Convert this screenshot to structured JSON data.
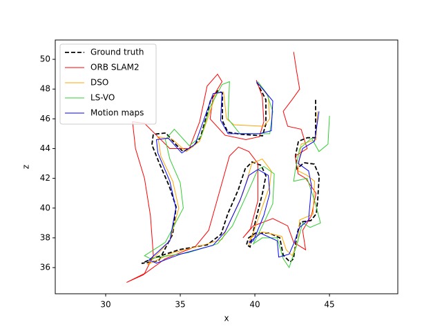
{
  "chart_data": {
    "type": "line",
    "xlabel": "x",
    "ylabel": "z",
    "xlim": [
      26.62,
      49.58
    ],
    "ylim": [
      34.24,
      51.3
    ],
    "xticks": [
      30,
      35,
      40,
      45
    ],
    "yticks": [
      36,
      38,
      40,
      42,
      44,
      46,
      48,
      50
    ],
    "legend": "upper left",
    "series": [
      {
        "name": "Ground truth",
        "color": "#000000",
        "linestyle": "dashed",
        "x": [
          44.07,
          44.07,
          43.52,
          42.92,
          42.73,
          42.82,
          43.29,
          43.98,
          44.31,
          44.21,
          44.12,
          43.75,
          43.06,
          42.82,
          42.59,
          42.36,
          41.9,
          41.67,
          40.97,
          40.05,
          39.58,
          39.44,
          39.68,
          40.05,
          40.51,
          40.74,
          40.42,
          39.81,
          39.35,
          38.89,
          38.19,
          37.73,
          36.81,
          34.95,
          33.1,
          32.41,
          33.56,
          34.49,
          34.72,
          34.26,
          33.56,
          33.1,
          33.19,
          34.03,
          34.72,
          35.19,
          35.88,
          36.34,
          36.67,
          37.04,
          37.5,
          37.82,
          37.82,
          38.19,
          39.12,
          40.51,
          40.74,
          40.74,
          40.14
        ],
        "values": [
          47.28,
          44.73,
          44.73,
          44.49,
          43.56,
          42.64,
          43.05,
          42.96,
          42.17,
          40.55,
          39.62,
          39.16,
          39.06,
          38.23,
          36.6,
          36.37,
          36.84,
          38.0,
          38.32,
          38.32,
          38.0,
          37.53,
          37.39,
          39.16,
          41.01,
          42.17,
          42.87,
          43.1,
          42.64,
          41.24,
          39.62,
          38.23,
          37.53,
          37.21,
          36.6,
          36.28,
          36.46,
          38.23,
          40.08,
          41.48,
          43.1,
          44.26,
          44.96,
          45.05,
          44.26,
          43.8,
          44.17,
          44.73,
          45.88,
          47.28,
          47.88,
          47.74,
          45.88,
          45.1,
          44.96,
          44.86,
          45.65,
          47.28,
          48.44
        ]
      },
      {
        "name": "ORB SLAM2",
        "color": "#ff0000",
        "linestyle": "solid",
        "x": [
          42.6,
          42.8,
          43.0,
          42.5,
          41.9,
          42.2,
          43.1,
          43.5,
          42.7,
          42.9,
          43.4,
          44.1,
          43.8,
          43.2,
          43.4,
          42.6,
          42.2,
          41.2,
          39.9,
          39.2,
          39.7,
          40.2,
          40.2,
          39.6,
          38.9,
          38.3,
          37.6,
          36.9,
          36.0,
          34.0,
          32.5,
          31.4,
          32.6,
          33.2,
          33.0,
          32.6,
          32.0,
          31.8,
          32.6,
          33.5,
          34.3,
          35.6,
          36.3,
          36.8,
          37.5,
          37.8,
          37.2,
          37.0,
          38.0,
          39.4,
          40.3,
          40.6,
          40.5,
          40.1
        ],
        "values": [
          50.5,
          49.2,
          48.0,
          47.3,
          46.5,
          45.5,
          45.3,
          44.0,
          43.5,
          42.3,
          42.0,
          41.0,
          39.5,
          38.5,
          37.2,
          37.7,
          38.8,
          39.3,
          38.8,
          38.0,
          38.6,
          40.5,
          43.0,
          43.8,
          44.1,
          43.5,
          41.0,
          38.5,
          37.4,
          36.6,
          35.5,
          35.0,
          35.6,
          36.8,
          39.5,
          42.0,
          44.0,
          45.8,
          45.7,
          44.8,
          44.0,
          44.0,
          45.8,
          48.2,
          49.0,
          48.5,
          47.5,
          46.0,
          44.9,
          44.6,
          44.8,
          45.8,
          47.5,
          48.6
        ]
      },
      {
        "name": "DSO",
        "color": "#ffa500",
        "linestyle": "solid",
        "x": [
          44.2,
          44.1,
          43.1,
          42.9,
          43.5,
          44.0,
          43.9,
          43.0,
          42.9,
          42.5,
          42.1,
          41.8,
          40.5,
          39.7,
          39.6,
          40.3,
          41.0,
          41.1,
          40.5,
          39.8,
          39.2,
          38.3,
          37.8,
          36.5,
          34.5,
          32.8,
          34.3,
          34.9,
          34.5,
          33.7,
          33.5,
          34.5,
          35.4,
          36.3,
          36.9,
          37.4,
          37.9,
          38.1,
          38.6,
          40.6,
          41.0,
          40.9,
          40.3
        ],
        "values": [
          46.5,
          44.6,
          44.3,
          42.5,
          42.2,
          41.8,
          39.6,
          39.2,
          37.8,
          36.8,
          37.2,
          38.1,
          38.4,
          38.0,
          37.5,
          39.5,
          41.5,
          42.5,
          43.3,
          43.0,
          41.0,
          39.0,
          37.9,
          37.5,
          37.0,
          36.2,
          37.8,
          40.0,
          41.8,
          43.5,
          44.8,
          44.6,
          43.8,
          44.5,
          46.2,
          47.7,
          47.8,
          46.0,
          45.6,
          45.5,
          46.0,
          47.5,
          48.3
        ]
      },
      {
        "name": "LS-VO",
        "color": "#32cd32",
        "linestyle": "solid",
        "x": [
          45.0,
          44.9,
          44.3,
          43.8,
          43.0,
          42.7,
          42.6,
          43.5,
          44.0,
          44.4,
          43.7,
          43.2,
          42.8,
          42.3,
          41.9,
          41.5,
          40.5,
          39.9,
          40.6,
          41.2,
          41.3,
          40.6,
          40.2,
          39.5,
          38.5,
          37.5,
          35.5,
          33.0,
          32.6,
          34.0,
          35.2,
          35.0,
          34.3,
          34.0,
          34.6,
          35.6,
          36.4,
          37.0,
          37.8,
          38.3,
          38.2,
          39.0,
          41.0,
          41.2,
          40.8,
          40.2
        ],
        "values": [
          46.2,
          44.3,
          43.8,
          44.7,
          44.0,
          42.5,
          41.8,
          42.0,
          40.5,
          39.0,
          38.7,
          39.0,
          37.5,
          36.0,
          36.6,
          38.0,
          38.0,
          37.6,
          39.0,
          40.3,
          42.3,
          42.8,
          42.6,
          41.0,
          38.8,
          37.6,
          37.0,
          36.6,
          36.8,
          37.7,
          40.0,
          41.7,
          43.3,
          44.6,
          45.3,
          44.2,
          44.8,
          46.8,
          48.3,
          48.5,
          46.0,
          45.0,
          45.0,
          46.5,
          47.7,
          48.5
        ]
      },
      {
        "name": "Motion maps",
        "color": "#0000ff",
        "linestyle": "solid",
        "x": [
          44.3,
          44.0,
          43.2,
          42.9,
          43.6,
          43.8,
          43.6,
          43.0,
          42.6,
          42.3,
          41.6,
          41.5,
          40.4,
          39.6,
          39.9,
          40.6,
          41.0,
          40.9,
          40.2,
          39.6,
          39.0,
          38.0,
          37.2,
          35.0,
          33.4,
          32.9,
          34.3,
          34.7,
          34.3,
          33.5,
          33.4,
          34.2,
          35.1,
          36.0,
          36.6,
          37.2,
          37.8,
          37.7,
          38.2,
          40.3,
          41.1,
          41.2,
          40.7,
          40.1
        ],
        "values": [
          46.5,
          44.5,
          44.0,
          43.0,
          42.5,
          41.5,
          39.2,
          38.7,
          37.6,
          36.9,
          36.7,
          37.8,
          38.3,
          37.7,
          37.8,
          39.5,
          41.0,
          42.2,
          42.6,
          42.2,
          40.5,
          38.4,
          37.5,
          36.9,
          36.3,
          36.5,
          37.8,
          40.0,
          41.8,
          43.7,
          44.6,
          44.7,
          43.7,
          44.3,
          46.0,
          47.7,
          47.8,
          45.9,
          45.0,
          45.0,
          45.2,
          47.2,
          47.8,
          48.5
        ]
      }
    ]
  }
}
